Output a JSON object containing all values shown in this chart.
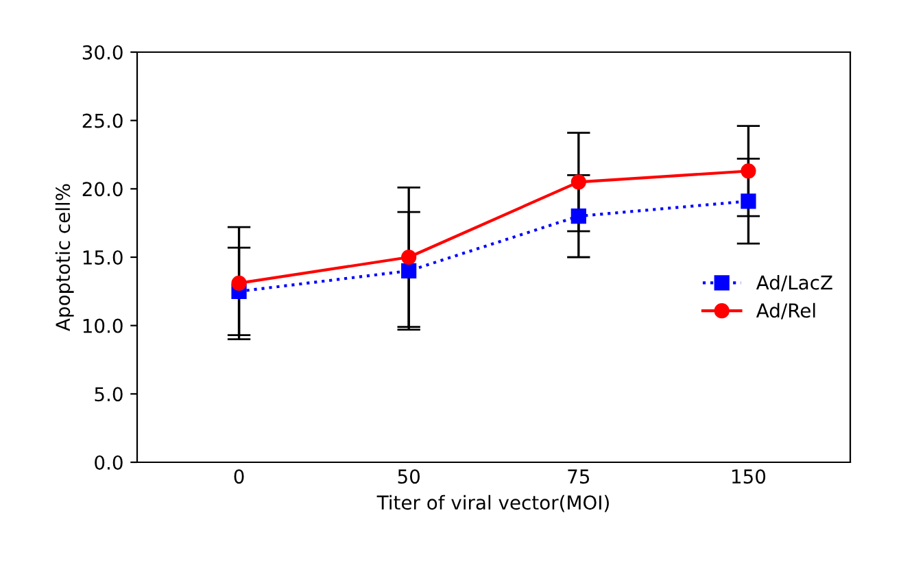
{
  "chart_data": {
    "type": "line",
    "xlabel": "Titer of viral vector(MOI)",
    "ylabel": "Apoptotic cell%",
    "categories": [
      "0",
      "50",
      "75",
      "150"
    ],
    "series": [
      {
        "name": "Ad/LacZ",
        "color": "#0000ff",
        "values": [
          12.5,
          14.0,
          18.0,
          19.1
        ],
        "errors": [
          3.2,
          4.3,
          3.0,
          3.1
        ],
        "marker": "square",
        "line_style": "dotted"
      },
      {
        "name": "Ad/Rel",
        "color": "#ff0000",
        "values": [
          13.1,
          15.0,
          20.5,
          21.3
        ],
        "errors": [
          4.1,
          5.1,
          3.6,
          3.3
        ],
        "marker": "circle",
        "line_style": "solid"
      }
    ],
    "ylim": [
      0,
      30
    ],
    "yticks": [
      {
        "value": 0,
        "label": "0.0"
      },
      {
        "value": 5,
        "label": "5.0"
      },
      {
        "value": 10,
        "label": "10.0"
      },
      {
        "value": 15,
        "label": "15.0"
      },
      {
        "value": 20,
        "label": "20.0"
      },
      {
        "value": 25,
        "label": "25.0"
      },
      {
        "value": 30,
        "label": "30.0"
      }
    ],
    "grid": false,
    "legend": "right"
  }
}
